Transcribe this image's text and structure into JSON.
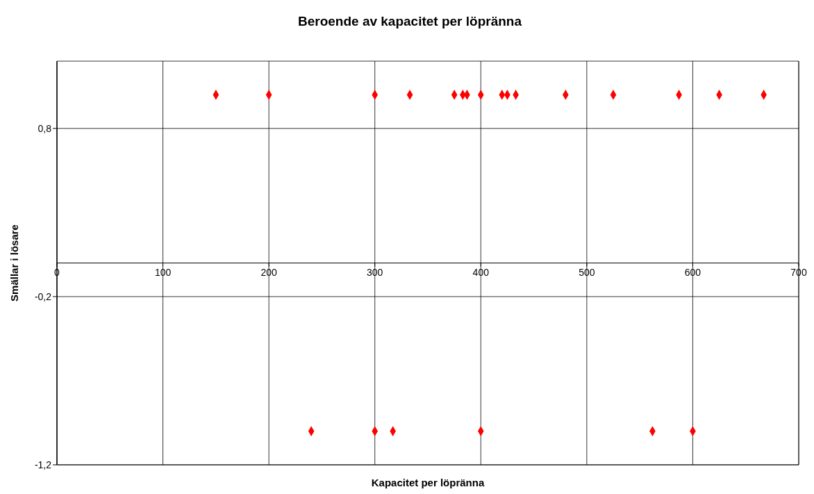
{
  "chart_data": {
    "type": "scatter",
    "title": "Beroende av kapacitet per löpränna",
    "xlabel": "Kapacitet per löpränna",
    "ylabel": "Smällar i lösare",
    "series": [
      {
        "color": "#ff0000",
        "x": [
          150,
          200,
          300,
          333,
          375,
          383,
          387,
          400,
          420,
          425,
          433,
          480,
          525,
          587,
          625,
          667,
          240,
          300,
          317,
          400,
          562,
          600
        ],
        "values": [
          1,
          1,
          1,
          1,
          1,
          1,
          1,
          1,
          1,
          1,
          1,
          1,
          1,
          1,
          1,
          1,
          -1,
          -1,
          -1,
          -1,
          -1,
          -1
        ]
      }
    ],
    "xlim": [
      0,
      700
    ],
    "xticks": [
      0,
      100,
      200,
      300,
      400,
      500,
      600,
      700
    ],
    "ylim": [
      -1.2,
      1.2
    ],
    "yticks": [
      {
        "value": -1.2,
        "label": "-1,2"
      },
      {
        "value": -0.2,
        "label": "-0,2"
      },
      {
        "value": 0.8,
        "label": "0,8"
      }
    ],
    "grid": true,
    "marker": "diamond",
    "legend": false
  }
}
